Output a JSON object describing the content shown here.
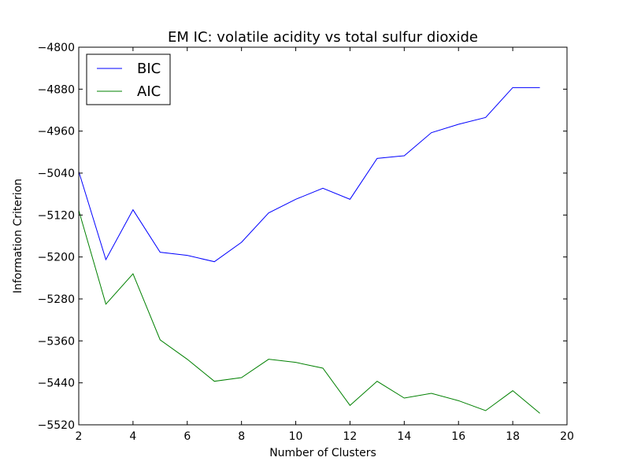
{
  "chart_data": {
    "type": "line",
    "title": "EM IC: volatile acidity vs total sulfur dioxide",
    "xlabel": "Number of Clusters",
    "ylabel": "Information Criterion",
    "xlim": [
      2,
      20
    ],
    "ylim": [
      -5520,
      -4800
    ],
    "xticks": [
      2,
      4,
      6,
      8,
      10,
      12,
      14,
      16,
      18,
      20
    ],
    "yticks": [
      -4800,
      -4880,
      -4960,
      -5040,
      -5120,
      -5200,
      -5280,
      -5360,
      -5440,
      -5520
    ],
    "grid": false,
    "legend_position": "top-left",
    "x": [
      2,
      3,
      4,
      5,
      6,
      7,
      8,
      9,
      10,
      11,
      12,
      13,
      14,
      15,
      16,
      17,
      18,
      19
    ],
    "series": [
      {
        "name": "BIC",
        "color": "#0000ff",
        "values": [
          -5037,
          -5205,
          -5110,
          -5191,
          -5197,
          -5209,
          -5172,
          -5116,
          -5090,
          -5069,
          -5090,
          -5012,
          -5007,
          -4963,
          -4947,
          -4934,
          -4877,
          -4877
        ]
      },
      {
        "name": "AIC",
        "color": "#008000",
        "values": [
          -5111,
          -5290,
          -5232,
          -5358,
          -5395,
          -5437,
          -5430,
          -5395,
          -5401,
          -5412,
          -5483,
          -5437,
          -5469,
          -5460,
          -5474,
          -5493,
          -5455,
          -5498
        ]
      }
    ]
  }
}
